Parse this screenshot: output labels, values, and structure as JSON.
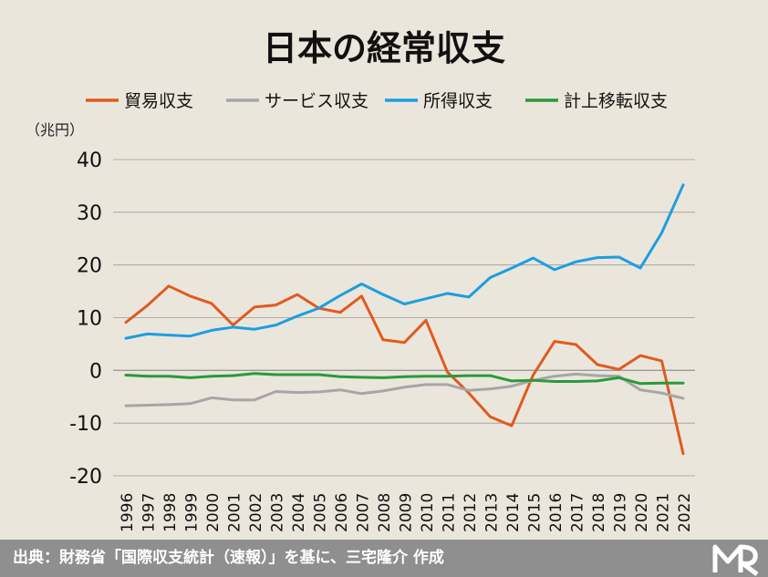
{
  "chart_data": {
    "type": "line",
    "title": "日本の経常収支",
    "unit_label": "（兆円）",
    "ylim": [
      -20,
      40
    ],
    "y_ticks": [
      40,
      30,
      20,
      10,
      0,
      -10,
      -20
    ],
    "grid": true,
    "legend_position": "top",
    "x": [
      "1996",
      "1997",
      "1998",
      "1999",
      "2000",
      "2001",
      "2002",
      "2003",
      "2004",
      "2005",
      "2006",
      "2007",
      "2008",
      "2009",
      "2010",
      "2011",
      "2012",
      "2013",
      "2014",
      "2015",
      "2016",
      "2017",
      "2018",
      "2019",
      "2020",
      "2021",
      "2022"
    ],
    "series": [
      {
        "name": "貿易収支",
        "color": "#e05a1e",
        "values": [
          9.1,
          12.3,
          16.0,
          14.1,
          12.7,
          8.6,
          12.0,
          12.4,
          14.4,
          11.8,
          11.0,
          14.1,
          5.8,
          5.3,
          9.5,
          -0.3,
          -4.3,
          -8.8,
          -10.5,
          -0.9,
          5.5,
          4.9,
          1.1,
          0.2,
          2.8,
          1.8,
          -15.8
        ]
      },
      {
        "name": "サービス収支",
        "color": "#a6a6a6",
        "values": [
          -6.7,
          -6.6,
          -6.5,
          -6.3,
          -5.2,
          -5.6,
          -5.6,
          -4.0,
          -4.2,
          -4.1,
          -3.7,
          -4.4,
          -3.9,
          -3.2,
          -2.7,
          -2.7,
          -3.8,
          -3.5,
          -3.0,
          -1.9,
          -1.1,
          -0.7,
          -1.0,
          -1.1,
          -3.7,
          -4.3,
          -5.3
        ]
      },
      {
        "name": "所得収支",
        "color": "#1d9ee0",
        "values": [
          6.1,
          6.9,
          6.7,
          6.5,
          7.6,
          8.2,
          7.8,
          8.6,
          10.3,
          11.8,
          14.2,
          16.4,
          14.4,
          12.6,
          13.6,
          14.6,
          13.9,
          17.6,
          19.4,
          21.3,
          19.1,
          20.6,
          21.4,
          21.5,
          19.4,
          26.1,
          35.2
        ]
      },
      {
        "name": "計上移転収支",
        "color": "#2a9a3a",
        "values": [
          -0.9,
          -1.1,
          -1.1,
          -1.4,
          -1.1,
          -1.0,
          -0.6,
          -0.8,
          -0.8,
          -0.8,
          -1.2,
          -1.3,
          -1.4,
          -1.2,
          -1.1,
          -1.1,
          -1.0,
          -1.0,
          -2.0,
          -1.9,
          -2.1,
          -2.1,
          -2.0,
          -1.4,
          -2.5,
          -2.4,
          -2.4
        ]
      }
    ]
  },
  "footer": {
    "source_text": "出典：財務省「国際収支統計（速報）」を基に、三宅隆介 作成"
  },
  "colors": {
    "background": "#ebe6dc",
    "footer_background": "#8f8f8f",
    "gridline": "#9a9a9a"
  }
}
